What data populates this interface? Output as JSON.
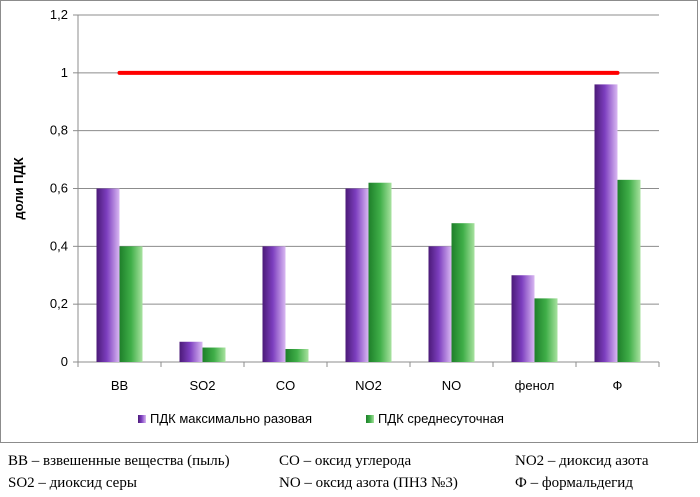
{
  "chart_data": {
    "type": "bar",
    "ylabel": "доли ПДК",
    "ylim": [
      0,
      1.2
    ],
    "yticks": [
      "0",
      "0,2",
      "0,4",
      "0,6",
      "0,8",
      "1",
      "1,2"
    ],
    "ytick_values": [
      0,
      0.2,
      0.4,
      0.6,
      0.8,
      1.0,
      1.2
    ],
    "categories": [
      "ВВ",
      "SO2",
      "CO",
      "NO2",
      "NO",
      "фенол",
      "Ф"
    ],
    "series": [
      {
        "name": "ПДК максимально разовая",
        "values": [
          0.6,
          0.07,
          0.4,
          0.6,
          0.4,
          0.3,
          0.96
        ],
        "color": "#7030a0"
      },
      {
        "name": "ПДК среднесуточная",
        "values": [
          0.4,
          0.05,
          0.045,
          0.62,
          0.48,
          0.22,
          0.63
        ],
        "color": "#2e9e3a"
      }
    ],
    "reference_line": {
      "value": 1.0,
      "color": "#ff0000"
    },
    "grid": true,
    "legend_position": "bottom"
  },
  "notes": [
    "ВВ – взвешенные вещества (пыль)",
    "СО – оксид углерода",
    "NO2 – диоксид азота",
    "SO2 – диоксид серы",
    "NO – оксид азота (ПНЗ №3)",
    "Ф – формальдегид"
  ]
}
